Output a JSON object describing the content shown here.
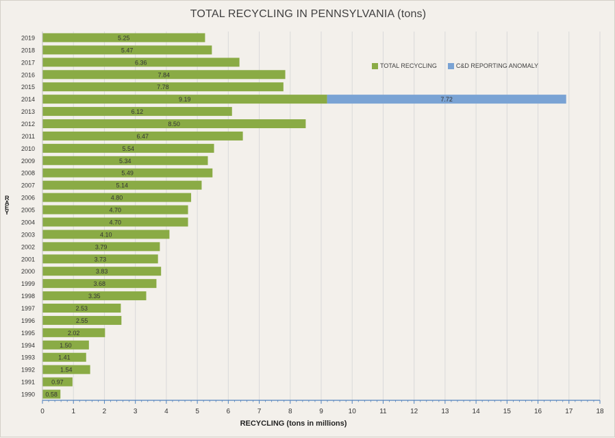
{
  "chart_data": {
    "type": "bar",
    "orientation": "horizontal",
    "stacked": true,
    "title": "TOTAL RECYCLING IN PENNSYLVANIA (tons)",
    "xlabel": "RECYCLING (tons in millions)",
    "ylabel": "RAEY",
    "xlim": [
      0,
      18
    ],
    "xticks": [
      "0",
      "1",
      "2",
      "3",
      "4",
      "5",
      "6",
      "7",
      "8",
      "9",
      "10",
      "11",
      "12",
      "13",
      "14",
      "15",
      "16",
      "17",
      "18"
    ],
    "grid": "vertical",
    "legend_position": "top-right",
    "categories": [
      "2019",
      "2018",
      "2017",
      "2016",
      "2015",
      "2014",
      "2013",
      "2012",
      "2011",
      "2010",
      "2009",
      "2008",
      "2007",
      "2006",
      "2005",
      "2004",
      "2003",
      "2002",
      "2001",
      "2000",
      "1999",
      "1998",
      "1997",
      "1996",
      "1995",
      "1994",
      "1993",
      "1992",
      "1991",
      "1990"
    ],
    "series": [
      {
        "name": "TOTAL RECYCLING",
        "color": "#8aab45",
        "values": [
          5.25,
          5.47,
          6.36,
          7.84,
          7.78,
          9.19,
          6.12,
          8.5,
          6.47,
          5.54,
          5.34,
          5.49,
          5.14,
          4.8,
          4.7,
          4.7,
          4.1,
          3.79,
          3.73,
          3.83,
          3.68,
          3.35,
          2.53,
          2.55,
          2.02,
          1.5,
          1.41,
          1.54,
          0.97,
          0.58
        ],
        "labels": [
          "5.25",
          "5.47",
          "6.36",
          "7.84",
          "7.78",
          "9.19",
          "6.12",
          "8.50",
          "6.47",
          "5.54",
          "5.34",
          "5.49",
          "5.14",
          "4.80",
          "4.70",
          "4.70",
          "4.10",
          "3.79",
          "3.73",
          "3.83",
          "3.68",
          "3.35",
          "2.53",
          "2.55",
          "2.02",
          "1.50",
          "1.41",
          "1.54",
          "0.97",
          "0.58"
        ]
      },
      {
        "name": "C&D REPORTING ANOMALY",
        "color": "#7aa3d4",
        "values": [
          0,
          0,
          0,
          0,
          0,
          7.72,
          0,
          0,
          0,
          0,
          0,
          0,
          0,
          0,
          0,
          0,
          0,
          0,
          0,
          0,
          0,
          0,
          0,
          0,
          0,
          0,
          0,
          0,
          0,
          0
        ],
        "labels": [
          "",
          "",
          "",
          "",
          "",
          "7.72",
          "",
          "",
          "",
          "",
          "",
          "",
          "",
          "",
          "",
          "",
          "",
          "",
          "",
          "",
          "",
          "",
          "",
          "",
          "",
          "",
          "",
          "",
          "",
          ""
        ]
      }
    ]
  }
}
